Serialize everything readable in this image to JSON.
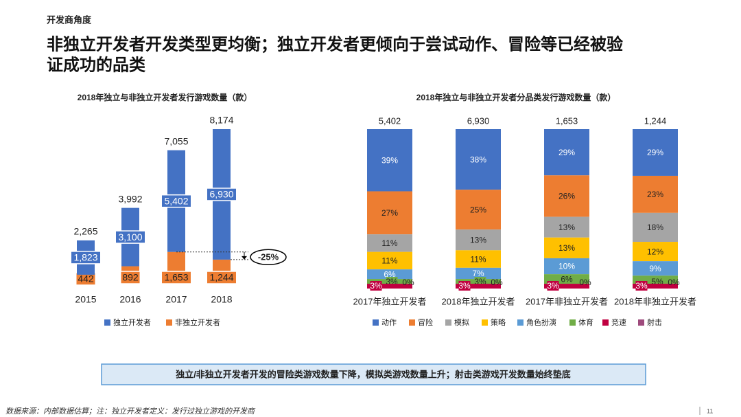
{
  "header": {
    "section": "开发商角度",
    "title_lines": [
      "非独立开发者开发类型更均衡；独立开发者更倾向于尝试动作、冒险等已经被验",
      "证成功的品类"
    ]
  },
  "chart_data": [
    {
      "type": "stacked_bar",
      "title": "2018年独立与非独立开发者发行游戏数量（款）",
      "categories": [
        "2015",
        "2016",
        "2017",
        "2018"
      ],
      "series": [
        {
          "name": "独立开发者",
          "color": "#4472c4",
          "values": [
            1823,
            3100,
            5402,
            6930
          ],
          "value_labels": [
            "1,823",
            "3,100",
            "5,402",
            "6,930"
          ]
        },
        {
          "name": "非独立开发者",
          "color": "#ed7d31",
          "values": [
            442,
            892,
            1653,
            1244
          ],
          "value_labels": [
            "442",
            "892",
            "1,653",
            "1,244"
          ]
        }
      ],
      "totals": [
        2265,
        3992,
        7055,
        8174
      ],
      "total_labels": [
        "2,265",
        "3,992",
        "7,055",
        "8,174"
      ],
      "annotation": "-25%"
    },
    {
      "type": "percent_stacked_bar",
      "title": "2018年独立与非独立开发者分品类发行游戏数量（款）",
      "categories": [
        "2017年独立开发者",
        "2018年独立开发者",
        "2017年非独立开发者",
        "2018年非独立开发者"
      ],
      "totals": [
        5402,
        6930,
        1653,
        1244
      ],
      "total_labels": [
        "5,402",
        "6,930",
        "1,653",
        "1,244"
      ],
      "series": [
        {
          "name": "动作",
          "color": "#4472c4",
          "values": [
            39,
            38,
            29,
            29
          ],
          "value_labels": [
            "39%",
            "38%",
            "29%",
            "29%"
          ]
        },
        {
          "name": "冒险",
          "color": "#ed7d31",
          "values": [
            27,
            25,
            26,
            23
          ],
          "value_labels": [
            "27%",
            "25%",
            "26%",
            "23%"
          ]
        },
        {
          "name": "模拟",
          "color": "#a5a5a5",
          "values": [
            11,
            13,
            13,
            18
          ],
          "value_labels": [
            "11%",
            "13%",
            "13%",
            "18%"
          ]
        },
        {
          "name": "策略",
          "color": "#ffc000",
          "values": [
            11,
            11,
            13,
            12
          ],
          "value_labels": [
            "11%",
            "11%",
            "13%",
            "12%"
          ]
        },
        {
          "name": "角色扮演",
          "color": "#5b9bd5",
          "values": [
            6,
            7,
            10,
            9
          ],
          "value_labels": [
            "6%",
            "7%",
            "10%",
            "9%"
          ]
        },
        {
          "name": "体育",
          "color": "#70ad47",
          "values": [
            3,
            3,
            6,
            5
          ],
          "value_labels": [
            "3%",
            "3%",
            "6%",
            "5%"
          ]
        },
        {
          "name": "竞速",
          "color": "#c00040",
          "values": [
            3,
            3,
            3,
            3
          ],
          "value_labels": [
            "3%",
            "3%",
            "3%",
            "3%"
          ]
        },
        {
          "name": "射击",
          "color": "#9e4a7c",
          "values": [
            0,
            0,
            0,
            0
          ],
          "value_labels": [
            "0%",
            "0%",
            "0%",
            "0%"
          ]
        }
      ]
    }
  ],
  "conclusion": "独立/非独立开发者开发的冒险类游戏数量下降，模拟类游戏数量上升；射击类游戏开发数量始终垫底",
  "footer": {
    "source": "数据来源：内部数据估算；注：独立开发者定义：发行过独立游戏的开发商",
    "page": "11"
  }
}
